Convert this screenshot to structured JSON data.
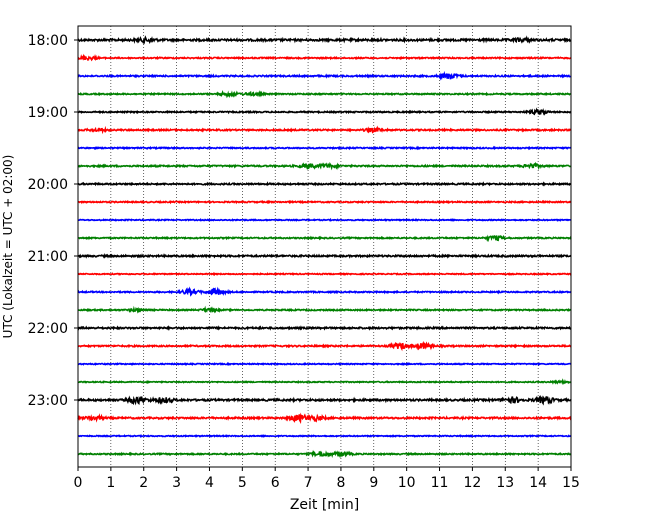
{
  "chart_data": {
    "type": "line",
    "title": "",
    "xlabel": "Zeit  [min]",
    "ylabel": "UTC (Lokalzeit = UTC + 02:00)",
    "xlim": [
      0,
      15
    ],
    "x_ticks": [
      0,
      1,
      2,
      3,
      4,
      5,
      6,
      7,
      8,
      9,
      10,
      11,
      12,
      13,
      14,
      15
    ],
    "vertical_grid": "dotted",
    "rows_per_hour": 4,
    "row_minutes": 15,
    "y_tick_labels": [
      "18:00",
      "19:00",
      "20:00",
      "21:00",
      "22:00",
      "23:00"
    ],
    "color_cycle": [
      "#000000",
      "#ff0000",
      "#0000ff",
      "#008000"
    ],
    "traces": [
      {
        "start": "18:00",
        "events": [
          {
            "t": 2.1,
            "amp": 1.6
          },
          {
            "t": 13.5,
            "amp": 1.4
          }
        ],
        "noise": 1.0
      },
      {
        "start": "18:15",
        "events": [
          {
            "t": 0.3,
            "amp": 1.6
          }
        ],
        "noise": 0.6
      },
      {
        "start": "18:30",
        "events": [
          {
            "t": 11.3,
            "amp": 2.8
          }
        ],
        "noise": 0.7
      },
      {
        "start": "18:45",
        "events": [
          {
            "t": 4.6,
            "amp": 1.8
          },
          {
            "t": 5.3,
            "amp": 1.2
          }
        ],
        "noise": 0.6
      },
      {
        "start": "19:00",
        "events": [
          {
            "t": 14.0,
            "amp": 2.2
          }
        ],
        "noise": 0.6
      },
      {
        "start": "19:15",
        "events": [
          {
            "t": 0.6,
            "amp": 1.0
          },
          {
            "t": 9.0,
            "amp": 1.6
          }
        ],
        "noise": 0.7
      },
      {
        "start": "19:30",
        "events": [],
        "noise": 0.6
      },
      {
        "start": "19:45",
        "events": [
          {
            "t": 7.0,
            "amp": 2.0
          },
          {
            "t": 7.6,
            "amp": 1.6
          },
          {
            "t": 13.8,
            "amp": 1.8
          }
        ],
        "noise": 0.7
      },
      {
        "start": "20:00",
        "events": [],
        "noise": 0.7
      },
      {
        "start": "20:15",
        "events": [],
        "noise": 0.6
      },
      {
        "start": "20:30",
        "events": [],
        "noise": 0.5
      },
      {
        "start": "20:45",
        "events": [
          {
            "t": 12.7,
            "amp": 2.0
          }
        ],
        "noise": 0.6
      },
      {
        "start": "21:00",
        "events": [],
        "noise": 0.8
      },
      {
        "start": "21:15",
        "events": [],
        "noise": 0.5
      },
      {
        "start": "21:30",
        "events": [
          {
            "t": 3.4,
            "amp": 2.4
          },
          {
            "t": 4.2,
            "amp": 2.8
          }
        ],
        "noise": 0.6
      },
      {
        "start": "21:45",
        "events": [
          {
            "t": 1.8,
            "amp": 1.2
          },
          {
            "t": 4.0,
            "amp": 1.2
          }
        ],
        "noise": 0.6
      },
      {
        "start": "22:00",
        "events": [],
        "noise": 0.8
      },
      {
        "start": "22:15",
        "events": [
          {
            "t": 9.8,
            "amp": 2.4
          },
          {
            "t": 10.5,
            "amp": 2.6
          }
        ],
        "noise": 0.7
      },
      {
        "start": "22:30",
        "events": [],
        "noise": 0.5
      },
      {
        "start": "22:45",
        "events": [
          {
            "t": 14.7,
            "amp": 1.0
          }
        ],
        "noise": 0.5
      },
      {
        "start": "23:00",
        "events": [
          {
            "t": 1.8,
            "amp": 3.2
          },
          {
            "t": 2.6,
            "amp": 2.4
          },
          {
            "t": 13.2,
            "amp": 2.6
          },
          {
            "t": 14.2,
            "amp": 3.0
          }
        ],
        "noise": 0.9
      },
      {
        "start": "23:15",
        "events": [
          {
            "t": 0.5,
            "amp": 1.8
          },
          {
            "t": 6.7,
            "amp": 3.0
          },
          {
            "t": 7.2,
            "amp": 2.2
          }
        ],
        "noise": 0.8
      },
      {
        "start": "23:30",
        "events": [],
        "noise": 0.5
      },
      {
        "start": "23:45",
        "events": [
          {
            "t": 7.4,
            "amp": 2.2
          },
          {
            "t": 8.0,
            "amp": 2.0
          }
        ],
        "noise": 0.6
      }
    ]
  }
}
